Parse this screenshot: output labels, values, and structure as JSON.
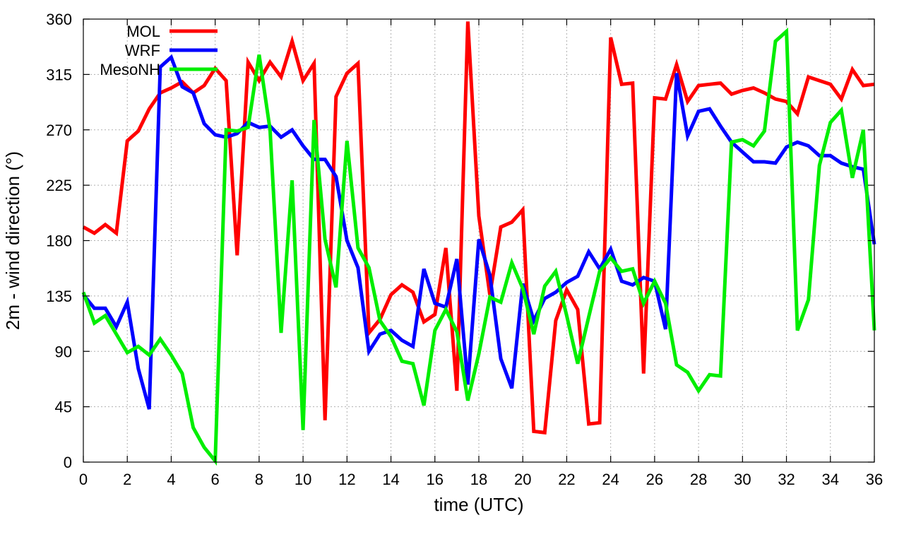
{
  "chart_data": {
    "type": "line",
    "title": "",
    "xlabel": "time (UTC)",
    "ylabel": "2m - wind direction (°)",
    "xlim": [
      0,
      36
    ],
    "ylim": [
      0,
      360
    ],
    "xticks": [
      0,
      2,
      4,
      6,
      8,
      10,
      12,
      14,
      16,
      18,
      20,
      22,
      24,
      26,
      28,
      30,
      32,
      34,
      36
    ],
    "yticks": [
      0,
      45,
      90,
      135,
      180,
      225,
      270,
      315,
      360
    ],
    "grid": true,
    "legend_position": "top-left",
    "series": [
      {
        "name": "MOL",
        "color": "#ff0000",
        "x": [
          0,
          0.5,
          1,
          1.5,
          2,
          2.5,
          3,
          3.5,
          4,
          4.5,
          5,
          5.5,
          6,
          6.5,
          7,
          7.5,
          8,
          8.5,
          9,
          9.5,
          10,
          10.5,
          11,
          11.5,
          12,
          12.5,
          13,
          13.5,
          14,
          14.5,
          15,
          15.5,
          16,
          16.5,
          17,
          17.5,
          18,
          18.5,
          19,
          19.5,
          20,
          20.5,
          21,
          21.5,
          22,
          22.5,
          23,
          23.5,
          24,
          24.5,
          25,
          25.5,
          26,
          26.5,
          27,
          27.5,
          28,
          28.5,
          29,
          29.5,
          30,
          30.5,
          31,
          31.5,
          32,
          32.5,
          33,
          33.5,
          34,
          34.5,
          35,
          35.5,
          36
        ],
        "y": [
          191,
          186,
          193,
          186,
          261,
          269,
          287,
          300,
          304,
          309,
          300,
          306,
          320,
          310,
          168,
          325,
          310,
          325,
          313,
          342,
          310,
          324,
          34,
          297,
          316,
          324,
          105,
          116,
          136,
          144,
          138,
          114,
          120,
          174,
          58,
          358,
          200,
          136,
          191,
          195,
          205,
          25,
          24,
          115,
          140,
          124,
          31,
          32,
          345,
          307,
          308,
          72,
          296,
          295,
          323,
          293,
          306,
          307,
          308,
          299,
          302,
          304,
          300,
          295,
          293,
          283,
          313,
          310,
          307,
          295,
          319,
          306,
          307
        ]
      },
      {
        "name": "WRF",
        "color": "#0000ff",
        "x": [
          0,
          0.5,
          1,
          1.5,
          2,
          2.5,
          3,
          3.5,
          4,
          4.5,
          5,
          5.5,
          6,
          6.5,
          7,
          7.5,
          8,
          8.5,
          9,
          9.5,
          10,
          10.5,
          11,
          11.5,
          12,
          12.5,
          13,
          13.5,
          14,
          14.5,
          15,
          15.5,
          16,
          16.5,
          17,
          17.5,
          18,
          18.5,
          19,
          19.5,
          20,
          20.5,
          21,
          21.5,
          22,
          22.5,
          23,
          23.5,
          24,
          24.5,
          25,
          25.5,
          26,
          26.5,
          27,
          27.5,
          28,
          28.5,
          29,
          29.5,
          30,
          30.5,
          31,
          31.5,
          32,
          32.5,
          33,
          33.5,
          34,
          34.5,
          35,
          35.5,
          36
        ],
        "y": [
          136,
          125,
          125,
          110,
          130,
          76,
          43,
          321,
          329,
          305,
          300,
          275,
          266,
          264,
          267,
          276,
          272,
          273,
          264,
          270,
          257,
          246,
          246,
          232,
          180,
          158,
          90,
          104,
          107,
          99,
          94,
          157,
          129,
          126,
          165,
          63,
          181,
          152,
          84,
          60,
          145,
          115,
          133,
          138,
          146,
          151,
          171,
          157,
          173,
          147,
          144,
          150,
          147,
          108,
          316,
          265,
          285,
          287,
          273,
          260,
          252,
          244,
          244,
          243,
          256,
          260,
          257,
          249,
          249,
          243,
          240,
          238,
          177
        ]
      },
      {
        "name": "MesoNH",
        "color": "#00ee00",
        "x": [
          0,
          0.5,
          1,
          1.5,
          2,
          2.5,
          3,
          3.5,
          4,
          4.5,
          5,
          5.5,
          6,
          6.5,
          7,
          7.5,
          8,
          8.5,
          9,
          9.5,
          10,
          10.5,
          11,
          11.5,
          12,
          12.5,
          13,
          13.5,
          14,
          14.5,
          15,
          15.5,
          16,
          16.5,
          17,
          17.5,
          18,
          18.5,
          19,
          19.5,
          20,
          20.5,
          21,
          21.5,
          22,
          22.5,
          23,
          23.5,
          24,
          24.5,
          25,
          25.5,
          26,
          26.5,
          27,
          27.5,
          28,
          28.5,
          29,
          29.5,
          30,
          30.5,
          31,
          31.5,
          32,
          32.5,
          33,
          33.5,
          34,
          34.5,
          35,
          35.5,
          36
        ],
        "y": [
          138,
          113,
          119,
          104,
          89,
          94,
          87,
          100,
          87,
          72,
          28,
          12,
          1,
          270,
          269,
          272,
          331,
          270,
          105,
          229,
          26,
          278,
          181,
          142,
          261,
          174,
          158,
          115,
          102,
          82,
          80,
          46,
          107,
          124,
          106,
          50,
          88,
          134,
          130,
          162,
          141,
          104,
          143,
          155,
          119,
          80,
          118,
          155,
          166,
          155,
          157,
          129,
          147,
          129,
          79,
          73,
          58,
          71,
          70,
          260,
          262,
          257,
          269,
          342,
          350,
          107,
          132,
          241,
          276,
          286,
          231,
          270,
          107
        ]
      }
    ]
  }
}
